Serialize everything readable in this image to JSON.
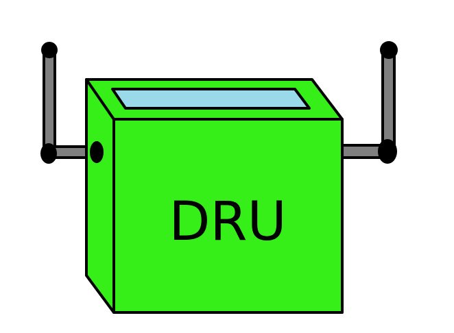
{
  "device": {
    "label": "DRU"
  },
  "colors": {
    "background": "#ffffff",
    "box_front": "#36ee18",
    "box_side": "#36ee18",
    "box_top": "#36ee18",
    "screen": "#99d9ea",
    "antenna_pole": "#7f7f7f",
    "outline": "#000000"
  },
  "parts": {
    "antennas": [
      "left-antenna",
      "right-antenna"
    ],
    "screen_icon": "display-screen-icon"
  }
}
